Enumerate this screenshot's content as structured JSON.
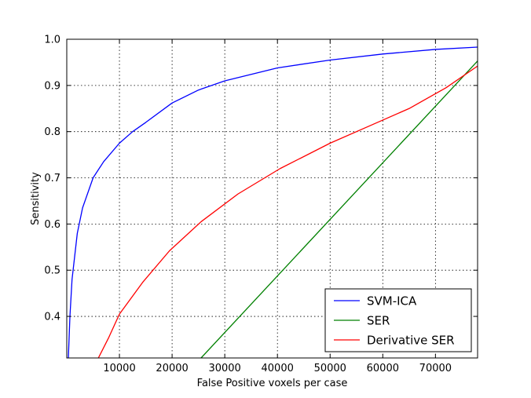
{
  "chart_data": {
    "type": "line",
    "title": "",
    "xlabel": "False Positive voxels per case",
    "ylabel": "Sensitivity",
    "xlim": [
      0,
      78000
    ],
    "ylim": [
      0.31,
      1.0
    ],
    "xticks": [
      10000,
      20000,
      30000,
      40000,
      50000,
      60000,
      70000
    ],
    "xtick_labels": [
      "10000",
      "20000",
      "30000",
      "40000",
      "50000",
      "60000",
      "70000"
    ],
    "yticks": [
      0.4,
      0.5,
      0.6,
      0.7,
      0.8,
      0.9,
      1.0
    ],
    "ytick_labels": [
      "0.4",
      "0.5",
      "0.6",
      "0.7",
      "0.8",
      "0.9",
      "1.0"
    ],
    "grid": true,
    "legend_position": "lower-right",
    "series": [
      {
        "name": "SVM-ICA",
        "color": "#0000ff",
        "points": [
          [
            300,
            0.31
          ],
          [
            600,
            0.4
          ],
          [
            1000,
            0.48
          ],
          [
            2000,
            0.58
          ],
          [
            3000,
            0.635
          ],
          [
            5000,
            0.7
          ],
          [
            7000,
            0.735
          ],
          [
            10000,
            0.775
          ],
          [
            12500,
            0.8
          ],
          [
            15000,
            0.82
          ],
          [
            20000,
            0.862
          ],
          [
            25000,
            0.89
          ],
          [
            30000,
            0.91
          ],
          [
            40000,
            0.938
          ],
          [
            50000,
            0.955
          ],
          [
            60000,
            0.968
          ],
          [
            70000,
            0.978
          ],
          [
            78000,
            0.983
          ]
        ]
      },
      {
        "name": "SER",
        "color": "#008000",
        "points": [
          [
            25500,
            0.31
          ],
          [
            78000,
            0.953
          ]
        ]
      },
      {
        "name": "Derivative SER",
        "color": "#ff0000",
        "points": [
          [
            6000,
            0.31
          ],
          [
            8000,
            0.355
          ],
          [
            10000,
            0.405
          ],
          [
            14500,
            0.475
          ],
          [
            19500,
            0.542
          ],
          [
            25500,
            0.605
          ],
          [
            32500,
            0.665
          ],
          [
            40500,
            0.72
          ],
          [
            50000,
            0.775
          ],
          [
            57000,
            0.81
          ],
          [
            65000,
            0.85
          ],
          [
            72000,
            0.895
          ],
          [
            78000,
            0.942
          ]
        ]
      }
    ]
  }
}
